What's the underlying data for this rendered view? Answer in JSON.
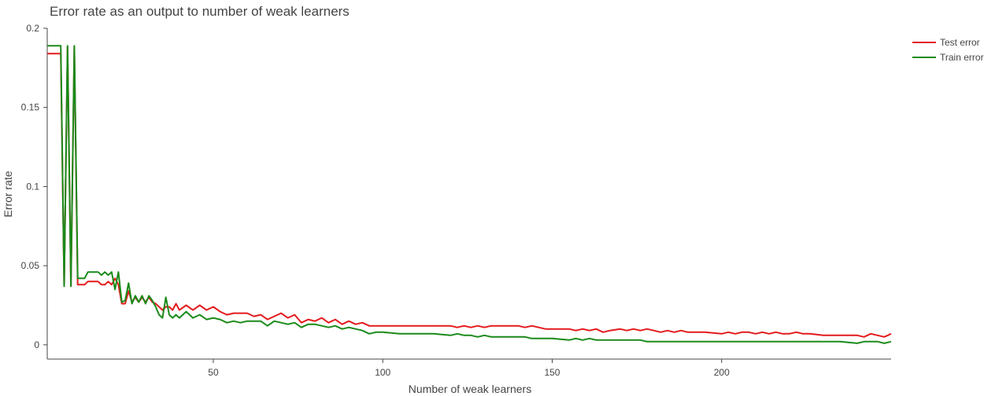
{
  "chart_data": {
    "type": "line",
    "title": "Error rate as an output to number of weak learners",
    "xlabel": "Number of weak learners",
    "ylabel": "Error rate",
    "xlim": [
      1,
      250
    ],
    "ylim": [
      -0.009,
      0.2
    ],
    "x_ticks": [
      50,
      100,
      150,
      200
    ],
    "x_tick_labels": [
      "50",
      "100",
      "150",
      "200"
    ],
    "y_ticks": [
      0,
      0.05,
      0.1,
      0.15,
      0.2
    ],
    "y_tick_labels": [
      "0",
      "0.05",
      "0.1",
      "0.15",
      "0.2"
    ],
    "grid": false,
    "legend_position": "top-right",
    "series": [
      {
        "name": "Test error",
        "color": "#e41a1c",
        "x": [
          1,
          2,
          3,
          4,
          5,
          6,
          7,
          8,
          9,
          10,
          11,
          12,
          13,
          14,
          15,
          16,
          17,
          18,
          19,
          20,
          21,
          22,
          23,
          24,
          25,
          26,
          27,
          28,
          29,
          30,
          31,
          32,
          33,
          34,
          35,
          36,
          37,
          38,
          39,
          40,
          42,
          44,
          46,
          48,
          50,
          52,
          54,
          56,
          58,
          60,
          62,
          64,
          66,
          68,
          70,
          72,
          74,
          76,
          78,
          80,
          82,
          84,
          86,
          88,
          90,
          92,
          94,
          96,
          98,
          100,
          105,
          110,
          115,
          120,
          122,
          124,
          126,
          128,
          130,
          132,
          135,
          140,
          142,
          144,
          146,
          148,
          150,
          155,
          157,
          159,
          161,
          163,
          165,
          167,
          170,
          172,
          174,
          176,
          178,
          180,
          182,
          184,
          186,
          188,
          190,
          195,
          200,
          202,
          204,
          206,
          208,
          210,
          212,
          214,
          216,
          218,
          220,
          222,
          224,
          226,
          230,
          235,
          240,
          242,
          244,
          246,
          248,
          250
        ],
        "values": [
          0.184,
          0.184,
          0.184,
          0.184,
          0.184,
          0.037,
          0.188,
          0.037,
          0.188,
          0.038,
          0.038,
          0.038,
          0.04,
          0.04,
          0.04,
          0.04,
          0.038,
          0.038,
          0.04,
          0.038,
          0.042,
          0.038,
          0.026,
          0.026,
          0.034,
          0.027,
          0.03,
          0.027,
          0.03,
          0.027,
          0.03,
          0.027,
          0.026,
          0.024,
          0.022,
          0.024,
          0.024,
          0.022,
          0.026,
          0.022,
          0.025,
          0.022,
          0.025,
          0.022,
          0.024,
          0.021,
          0.019,
          0.02,
          0.02,
          0.02,
          0.018,
          0.019,
          0.016,
          0.018,
          0.02,
          0.017,
          0.019,
          0.014,
          0.016,
          0.015,
          0.017,
          0.014,
          0.016,
          0.013,
          0.015,
          0.013,
          0.014,
          0.012,
          0.012,
          0.012,
          0.012,
          0.012,
          0.012,
          0.012,
          0.011,
          0.012,
          0.011,
          0.012,
          0.011,
          0.012,
          0.012,
          0.012,
          0.011,
          0.012,
          0.011,
          0.01,
          0.01,
          0.01,
          0.009,
          0.01,
          0.009,
          0.01,
          0.008,
          0.009,
          0.01,
          0.009,
          0.01,
          0.009,
          0.01,
          0.009,
          0.008,
          0.009,
          0.008,
          0.009,
          0.008,
          0.008,
          0.007,
          0.008,
          0.007,
          0.008,
          0.008,
          0.007,
          0.008,
          0.007,
          0.008,
          0.007,
          0.007,
          0.008,
          0.007,
          0.007,
          0.006,
          0.006,
          0.006,
          0.005,
          0.007,
          0.006,
          0.005,
          0.007
        ]
      },
      {
        "name": "Train error",
        "color": "#1a8a1a",
        "x": [
          1,
          2,
          3,
          4,
          5,
          6,
          7,
          8,
          9,
          10,
          11,
          12,
          13,
          14,
          15,
          16,
          17,
          18,
          19,
          20,
          21,
          22,
          23,
          24,
          25,
          26,
          27,
          28,
          29,
          30,
          31,
          32,
          33,
          34,
          35,
          36,
          37,
          38,
          39,
          40,
          42,
          44,
          46,
          48,
          50,
          52,
          54,
          56,
          58,
          60,
          62,
          64,
          66,
          68,
          70,
          72,
          74,
          76,
          78,
          80,
          82,
          84,
          86,
          88,
          90,
          92,
          94,
          96,
          98,
          100,
          105,
          110,
          115,
          120,
          122,
          124,
          126,
          128,
          130,
          132,
          135,
          140,
          142,
          144,
          146,
          148,
          150,
          155,
          157,
          159,
          161,
          163,
          165,
          167,
          170,
          172,
          174,
          176,
          178,
          180,
          182,
          184,
          186,
          188,
          190,
          195,
          200,
          202,
          204,
          206,
          208,
          210,
          212,
          214,
          216,
          218,
          220,
          222,
          224,
          226,
          230,
          235,
          240,
          242,
          244,
          246,
          248,
          250
        ],
        "values": [
          0.189,
          0.189,
          0.189,
          0.189,
          0.189,
          0.037,
          0.189,
          0.037,
          0.189,
          0.042,
          0.042,
          0.042,
          0.046,
          0.046,
          0.046,
          0.046,
          0.044,
          0.046,
          0.044,
          0.046,
          0.035,
          0.046,
          0.027,
          0.028,
          0.039,
          0.026,
          0.031,
          0.027,
          0.031,
          0.026,
          0.031,
          0.028,
          0.024,
          0.019,
          0.017,
          0.03,
          0.019,
          0.017,
          0.019,
          0.017,
          0.021,
          0.017,
          0.019,
          0.016,
          0.017,
          0.016,
          0.014,
          0.015,
          0.014,
          0.015,
          0.015,
          0.015,
          0.012,
          0.015,
          0.014,
          0.013,
          0.014,
          0.011,
          0.013,
          0.013,
          0.012,
          0.011,
          0.012,
          0.01,
          0.011,
          0.01,
          0.009,
          0.007,
          0.008,
          0.008,
          0.007,
          0.007,
          0.007,
          0.006,
          0.007,
          0.006,
          0.006,
          0.005,
          0.006,
          0.005,
          0.005,
          0.005,
          0.005,
          0.004,
          0.004,
          0.004,
          0.004,
          0.003,
          0.004,
          0.003,
          0.004,
          0.003,
          0.003,
          0.003,
          0.003,
          0.003,
          0.003,
          0.003,
          0.002,
          0.002,
          0.002,
          0.002,
          0.002,
          0.002,
          0.002,
          0.002,
          0.002,
          0.002,
          0.002,
          0.002,
          0.002,
          0.002,
          0.002,
          0.002,
          0.002,
          0.002,
          0.002,
          0.002,
          0.002,
          0.002,
          0.002,
          0.002,
          0.001,
          0.002,
          0.002,
          0.002,
          0.001,
          0.002
        ]
      }
    ]
  }
}
